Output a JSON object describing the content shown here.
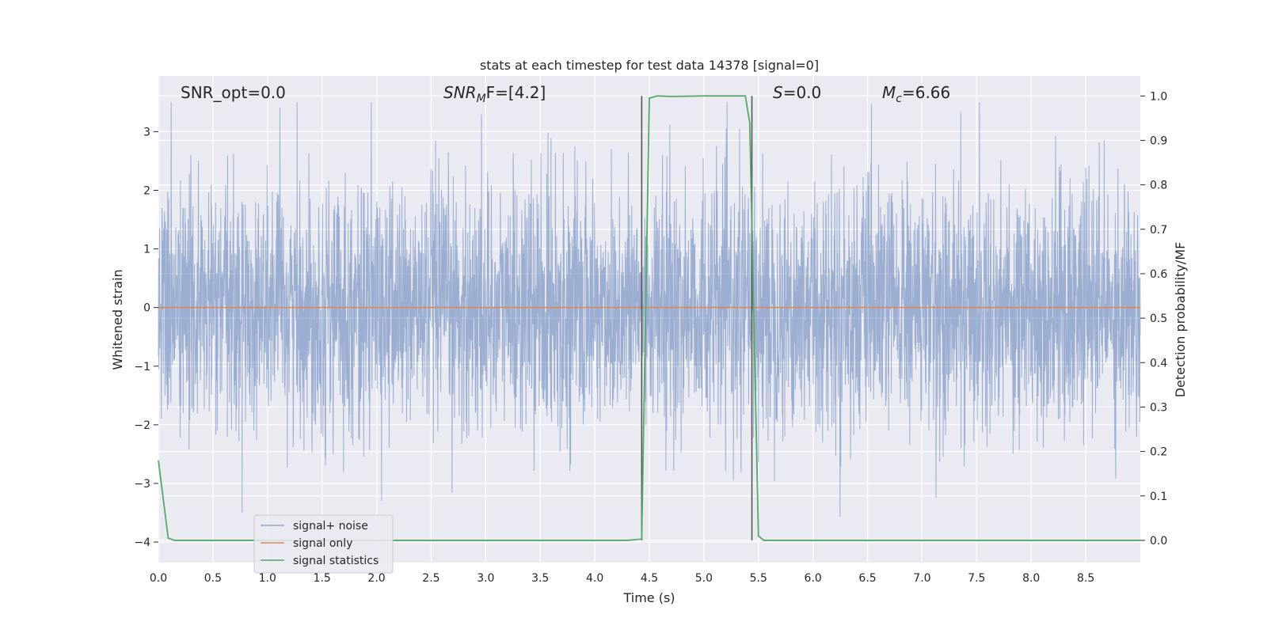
{
  "chart_data": {
    "type": "line",
    "title": "stats at each timestep for test data 14378 [signal=0]",
    "xlabel": "Time (s)",
    "ylabel_left": "Whitened strain",
    "ylabel_right": "Detection probability/MF",
    "xlim": [
      0,
      9
    ],
    "ylim_left": [
      -4.35,
      3.95
    ],
    "ylim_right": [
      -0.05,
      1.045
    ],
    "x_ticks": [
      0.0,
      0.5,
      1.0,
      1.5,
      2.0,
      2.5,
      3.0,
      3.5,
      4.0,
      4.5,
      5.0,
      5.5,
      6.0,
      6.5,
      7.0,
      7.5,
      8.0,
      8.5
    ],
    "x_tick_labels": [
      "0.0",
      "0.5",
      "1.0",
      "1.5",
      "2.0",
      "2.5",
      "3.0",
      "3.5",
      "4.0",
      "4.5",
      "5.0",
      "5.5",
      "6.0",
      "6.5",
      "7.0",
      "7.5",
      "8.0",
      "8.5"
    ],
    "y_left_ticks": [
      3,
      2,
      1,
      0,
      -1,
      -2,
      -3,
      -4
    ],
    "y_left_tick_labels": [
      "3",
      "2",
      "1",
      "0",
      "−1",
      "−2",
      "−3",
      "−4"
    ],
    "y_right_ticks": [
      1.0,
      0.9,
      0.8,
      0.7,
      0.6,
      0.5,
      0.4,
      0.3,
      0.2,
      0.1,
      0.0
    ],
    "y_right_tick_labels": [
      "1.0",
      "0.9",
      "0.8",
      "0.7",
      "0.6",
      "0.5",
      "0.4",
      "0.3",
      "0.2",
      "0.1",
      "0.0"
    ],
    "grid": true,
    "legend_placement": "lower-left",
    "annotations": {
      "snr_opt": "SNR_opt=0.0",
      "snr_mf_main": "SNR",
      "snr_mf_sub": "M",
      "snr_mf_rest": "F=[4.2]",
      "s_main": "S",
      "s_rest": "=0.0",
      "mc_main": "M",
      "mc_sub": "c",
      "mc_rest": "=6.66"
    },
    "vertical_markers_x": [
      4.43,
      5.44
    ],
    "series": [
      {
        "name": "signal+ noise",
        "color": "#4c72b0",
        "style": "noise",
        "noise_sigma": 1.0,
        "noise_range": [
          -3.6,
          3.5
        ]
      },
      {
        "name": "signal only",
        "color": "#dd8452",
        "x": [
          0,
          9
        ],
        "y": [
          0,
          0
        ]
      },
      {
        "name": "signal statistics",
        "color": "#55a868",
        "axis": "right",
        "x": [
          0.0,
          0.09,
          0.15,
          0.5,
          1.0,
          2.0,
          3.0,
          4.0,
          4.3,
          4.43,
          4.5,
          4.57,
          4.7,
          5.0,
          5.3,
          5.38,
          5.42,
          5.5,
          5.55,
          6.0,
          7.0,
          8.0,
          9.0
        ],
        "y": [
          0.18,
          0.005,
          0.0,
          0.0,
          0.0,
          0.0,
          0.0,
          0.0,
          0.0,
          0.003,
          0.995,
          1.0,
          0.999,
          1.0,
          1.0,
          1.0,
          0.94,
          0.01,
          0.0,
          0.0,
          0.0,
          0.0,
          0.0
        ]
      }
    ]
  }
}
